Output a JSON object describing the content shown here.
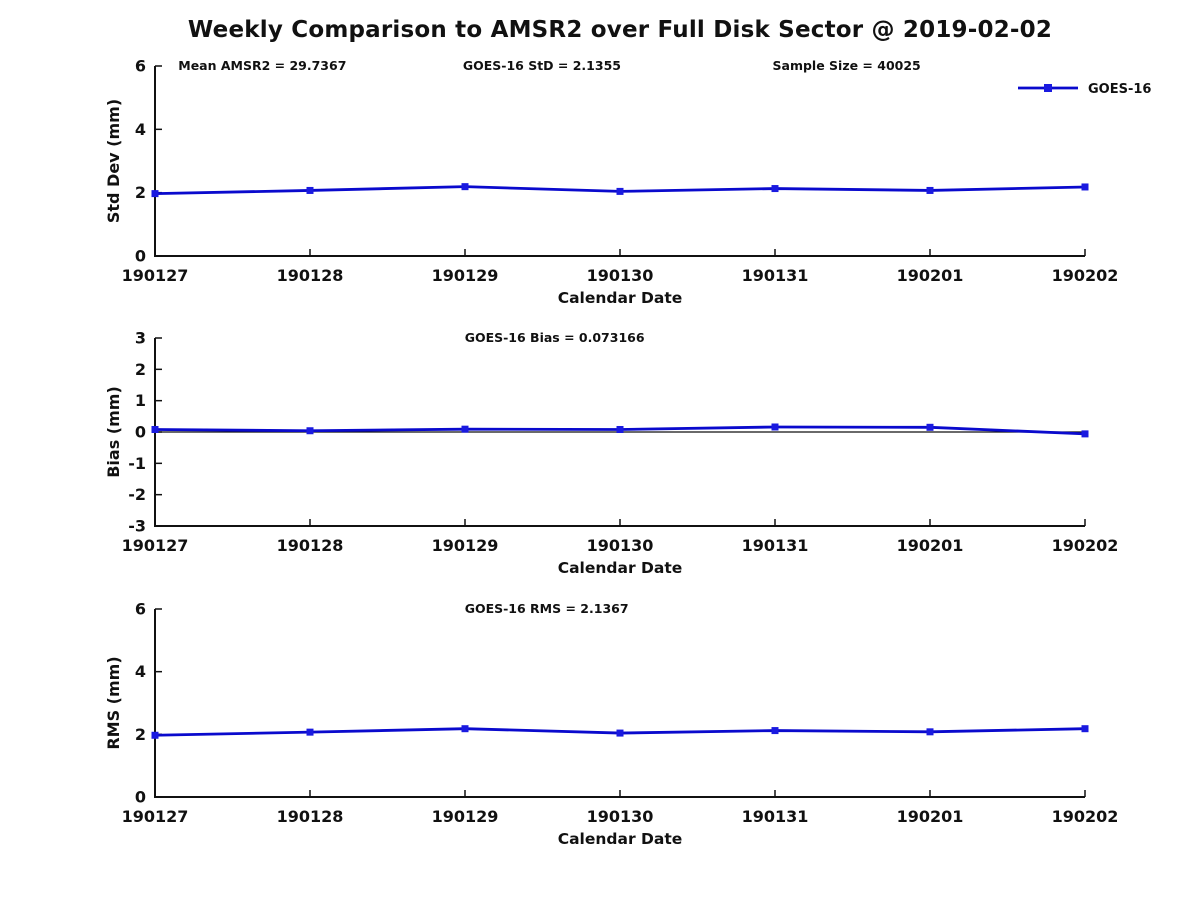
{
  "figure": {
    "title": "Weekly Comparison to AMSR2 over Full Disk Sector @ 2019-02-02",
    "line_color": "#0a0acd",
    "marker_color": "#1a1ae0",
    "text_color": "#111111"
  },
  "chart_data": {
    "type": "line",
    "title": "Weekly Comparison to AMSR2 over Full Disk Sector @ 2019-02-02",
    "categories": [
      "190127",
      "190128",
      "190129",
      "190130",
      "190131",
      "190201",
      "190202"
    ],
    "xlabel": "Calendar Date",
    "legend": {
      "label": "GOES-16",
      "position": "top-right"
    },
    "grid": false,
    "subplots": [
      {
        "name": "std-dev",
        "ylabel": "Std Dev (mm)",
        "ylim": [
          0,
          6
        ],
        "yticks": [
          0,
          2,
          4,
          6
        ],
        "series": [
          {
            "name": "GOES-16",
            "values": [
              1.97,
              2.07,
              2.19,
              2.04,
              2.13,
              2.07,
              2.18
            ]
          }
        ],
        "annotations": [
          {
            "text": "Mean AMSR2 = 29.7367",
            "xfrac": 0.025
          },
          {
            "text": "GOES-16 StD = 2.1355",
            "xfrac": 0.331
          },
          {
            "text": "Sample Size = 40025",
            "xfrac": 0.664
          }
        ],
        "show_legend": true,
        "zero_line": false
      },
      {
        "name": "bias",
        "ylabel": "Bias (mm)",
        "ylim": [
          -3,
          3
        ],
        "yticks": [
          -3,
          -2,
          -1,
          0,
          1,
          2,
          3
        ],
        "series": [
          {
            "name": "GOES-16",
            "values": [
              0.08,
              0.04,
              0.09,
              0.08,
              0.16,
              0.15,
              -0.06
            ]
          }
        ],
        "annotations": [
          {
            "text": "GOES-16 Bias  = 0.073166",
            "xfrac": 0.333
          }
        ],
        "show_legend": false,
        "zero_line": true
      },
      {
        "name": "rms",
        "ylabel": "RMS (mm)",
        "ylim": [
          0,
          6
        ],
        "yticks": [
          0,
          2,
          4,
          6
        ],
        "series": [
          {
            "name": "GOES-16",
            "values": [
              1.97,
              2.07,
              2.18,
              2.04,
              2.12,
              2.08,
              2.18
            ]
          }
        ],
        "annotations": [
          {
            "text": "GOES-16 RMS = 2.1367",
            "xfrac": 0.333
          }
        ],
        "show_legend": false,
        "zero_line": false
      }
    ]
  }
}
